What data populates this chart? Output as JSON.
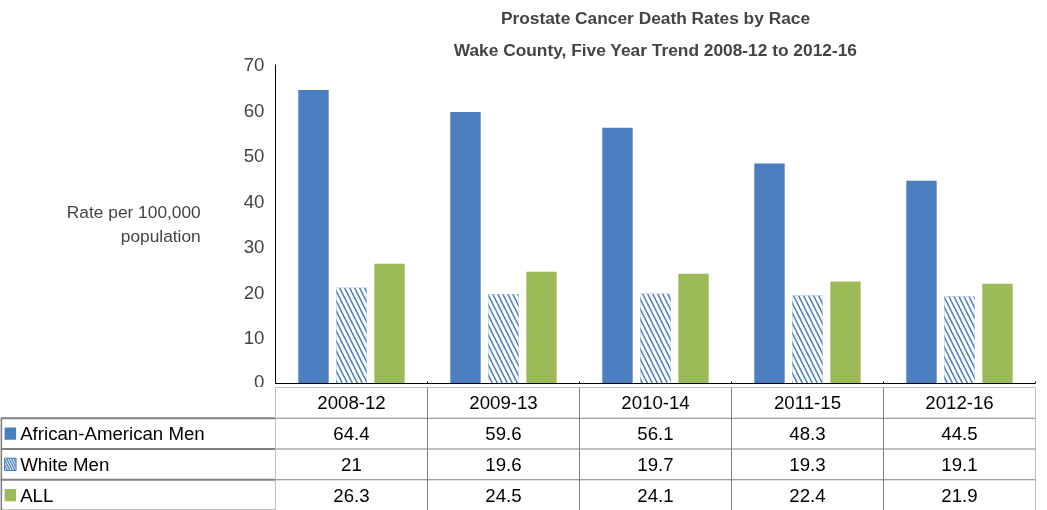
{
  "chart_data": {
    "type": "bar",
    "title": "Prostate Cancer Death Rates by Race",
    "subtitle": "Wake County, Five Year Trend 2008-12 to 2012-16",
    "ylabel": "Rate per 100,000\npopulation",
    "categories": [
      "2008-12",
      "2009-13",
      "2010-14",
      "2011-15",
      "2012-16"
    ],
    "series": [
      {
        "name": "African-American Men",
        "color": "#4a7ebf",
        "values": [
          64.4,
          59.6,
          56.1,
          48.3,
          44.5
        ]
      },
      {
        "name": "White Men",
        "color": "#4a7ebf",
        "values": [
          21,
          19.6,
          19.7,
          19.3,
          19.1
        ]
      },
      {
        "name": "ALL",
        "color": "#9bbb59",
        "values": [
          26.3,
          24.5,
          24.1,
          22.4,
          21.9
        ]
      }
    ],
    "ylim": [
      0,
      70
    ],
    "yticks": [
      0,
      10,
      20,
      30,
      40,
      50,
      60,
      70
    ],
    "grid": false,
    "legend": "bottom",
    "data_labels": true
  }
}
